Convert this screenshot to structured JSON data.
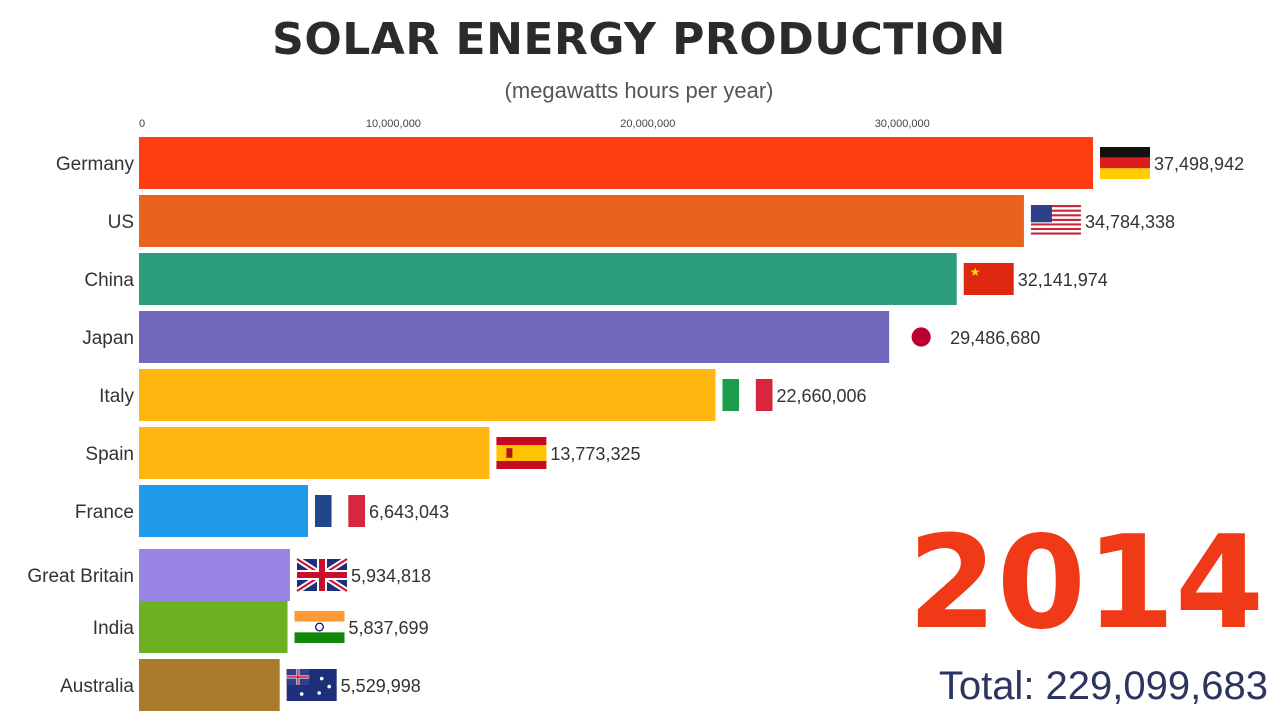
{
  "chart_data": {
    "type": "bar",
    "orientation": "horizontal",
    "title": "SOLAR ENERGY PRODUCTION",
    "subtitle": "(megawatts hours per year)",
    "xlim": [
      0,
      40000000
    ],
    "ticks": [
      0,
      10000000,
      20000000,
      30000000
    ],
    "tick_labels": [
      "0",
      "10,000,000",
      "20,000,000",
      "30,000,000"
    ],
    "categories": [
      "Germany",
      "US",
      "China",
      "Japan",
      "Italy",
      "Spain",
      "France",
      "Great Britain",
      "India",
      "Australia"
    ],
    "values": [
      37498942,
      34784338,
      32141974,
      29486680,
      22660006,
      13773325,
      6643043,
      5934818,
      5837699,
      5529998
    ],
    "value_labels": [
      "37,498,942",
      "34,784,338",
      "32,141,974",
      "29,486,680",
      "22,660,006",
      "13,773,325",
      "6,643,043",
      "5,934,818",
      "5,837,699",
      "5,529,998"
    ],
    "colors": [
      "#ff3d12",
      "#e8641c",
      "#2b9c7c",
      "#7169bd",
      "#ffb60f",
      "#ffb60f",
      "#1e9ae8",
      "#9a85e5",
      "#6db021",
      "#a97b2b"
    ],
    "flags": [
      "flag-germany-icon",
      "flag-us-icon",
      "flag-china-icon",
      "flag-japan-icon",
      "flag-italy-icon",
      "flag-spain-icon",
      "flag-france-icon",
      "flag-uk-icon",
      "flag-india-icon",
      "flag-australia-icon"
    ],
    "year": "2014",
    "total_label": "Total: 229,099,683"
  }
}
